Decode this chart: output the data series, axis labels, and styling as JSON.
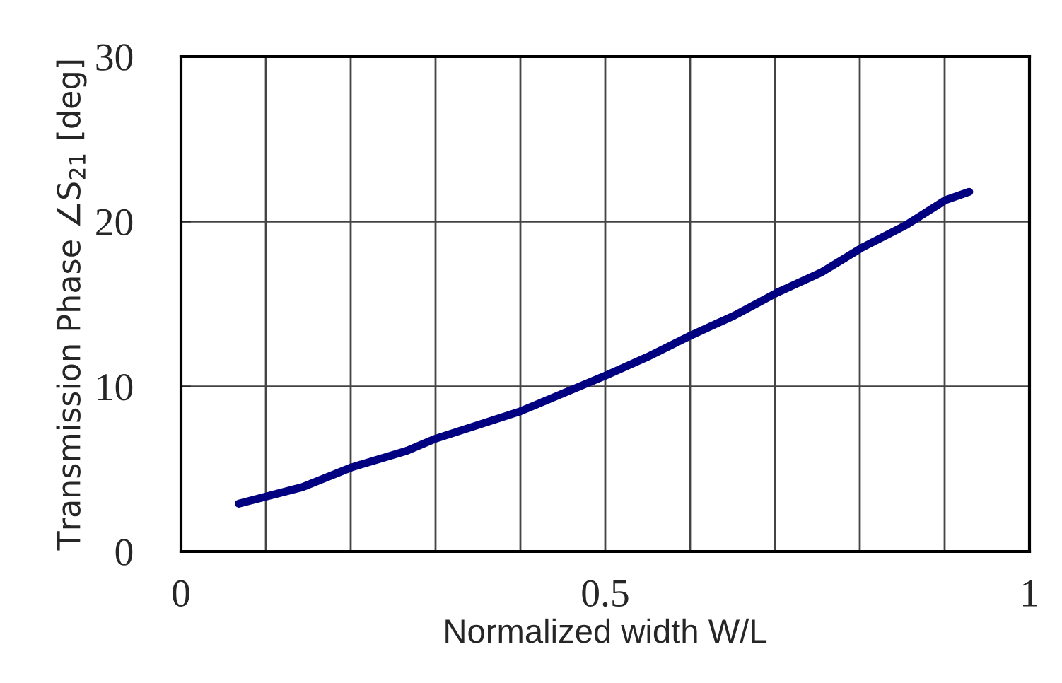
{
  "chart_data": {
    "type": "line",
    "xlabel": "Normalized width W/L",
    "ylabel": "Transmission Phase ∠S$_{21}$ [deg]",
    "x": [
      0.068,
      0.143,
      0.201,
      0.266,
      0.298,
      0.4,
      0.502,
      0.55,
      0.601,
      0.652,
      0.703,
      0.754,
      0.802,
      0.855,
      0.901,
      0.929
    ],
    "series": [
      {
        "color": "#000080",
        "values": [
          2.9,
          3.9,
          5.1,
          6.1,
          6.8,
          8.5,
          10.7,
          11.8,
          13.1,
          14.3,
          15.7,
          16.9,
          18.4,
          19.8,
          21.3,
          21.8
        ]
      }
    ],
    "xlim": [
      0,
      1
    ],
    "ylim": [
      0,
      30
    ],
    "xticks": [
      0,
      {
        "value": 0.1,
        "label": null
      },
      {
        "value": 0.2,
        "label": null
      },
      {
        "value": 0.3,
        "label": null
      },
      {
        "value": 0.4,
        "label": null
      },
      0.5,
      {
        "value": 0.6,
        "label": null
      },
      {
        "value": 0.7,
        "label": null
      },
      {
        "value": 0.8,
        "label": null
      },
      {
        "value": 0.9,
        "label": null
      },
      1
    ],
    "yticks": [
      0,
      10,
      20,
      30
    ],
    "grid": true,
    "marker": "none",
    "line_style": "solid",
    "legend": false
  }
}
